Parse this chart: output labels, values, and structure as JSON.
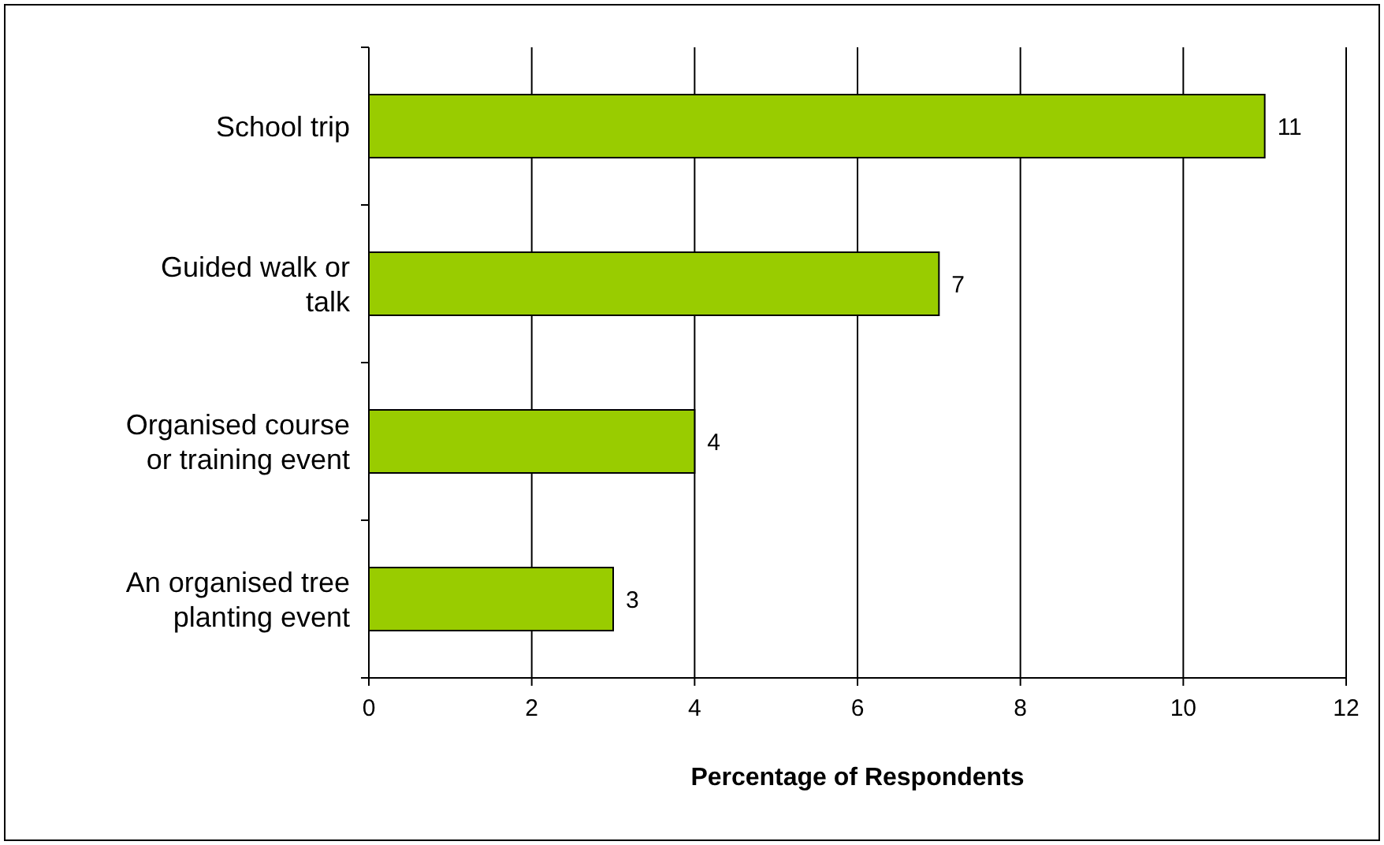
{
  "chart_data": {
    "type": "bar",
    "orientation": "horizontal",
    "xlabel": "Percentage of Respondents",
    "categories": [
      "School trip",
      "Guided walk or talk",
      "Organised course or training event",
      "An organised tree planting event"
    ],
    "values": [
      11,
      7,
      4,
      3
    ],
    "color": "#99cc00",
    "data_labels": true,
    "xlim": [
      0,
      12
    ],
    "xticks": [
      0,
      2,
      4,
      6,
      8,
      10,
      12
    ],
    "grid": "x"
  }
}
